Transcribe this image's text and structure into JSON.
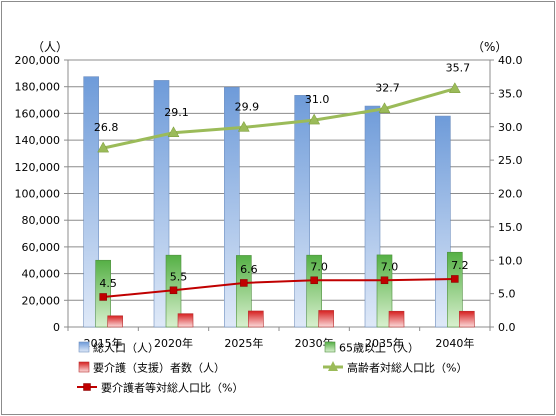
{
  "chart_data": {
    "type": "bar",
    "categories": [
      "2015年",
      "2020年",
      "2025年",
      "2030年",
      "2035年",
      "2040年"
    ],
    "y_left": {
      "unit": "（人）",
      "range": [
        0,
        200000
      ],
      "step": 20000,
      "ticks": [
        "0",
        "20,000",
        "40,000",
        "60,000",
        "80,000",
        "100,000",
        "120,000",
        "140,000",
        "160,000",
        "180,000",
        "200,000"
      ]
    },
    "y_right": {
      "unit": "（%）",
      "range": [
        0,
        40
      ],
      "step": 5,
      "ticks": [
        "0.0",
        "5.0",
        "10.0",
        "15.0",
        "20.0",
        "25.0",
        "30.0",
        "35.0",
        "40.0"
      ]
    },
    "grid": true,
    "legend_position": "bottom",
    "series": [
      {
        "name": "総人口（人）",
        "kind": "bar",
        "axis": "left",
        "color": "#8fb3e3",
        "values": [
          187500,
          184700,
          179600,
          173500,
          165500,
          158000
        ]
      },
      {
        "name": "65歳以上（人）",
        "kind": "bar",
        "axis": "left",
        "color": "#7fc56a",
        "values": [
          50000,
          53800,
          53600,
          53800,
          54000,
          56000
        ]
      },
      {
        "name": "要介護（支援）者数（人）",
        "kind": "bar",
        "axis": "left",
        "color": "#e84a4a",
        "values": [
          8400,
          10000,
          12000,
          12400,
          11800,
          11800
        ]
      },
      {
        "name": "高齢者対総人口比（%）",
        "kind": "line",
        "axis": "right",
        "color": "#9bbb59",
        "marker": "triangle",
        "values": [
          26.8,
          29.1,
          29.9,
          31.0,
          32.7,
          35.7
        ],
        "labels": [
          "26.8",
          "29.1",
          "29.9",
          "31.0",
          "32.7",
          "35.7"
        ]
      },
      {
        "name": "要介護者等対総人口比（%）",
        "kind": "line",
        "axis": "right",
        "color": "#c00000",
        "marker": "square",
        "values": [
          4.5,
          5.5,
          6.6,
          7.0,
          7.0,
          7.2
        ],
        "labels": [
          "4.5",
          "5.5",
          "6.6",
          "7.0",
          "7.0",
          "7.2"
        ]
      }
    ]
  }
}
